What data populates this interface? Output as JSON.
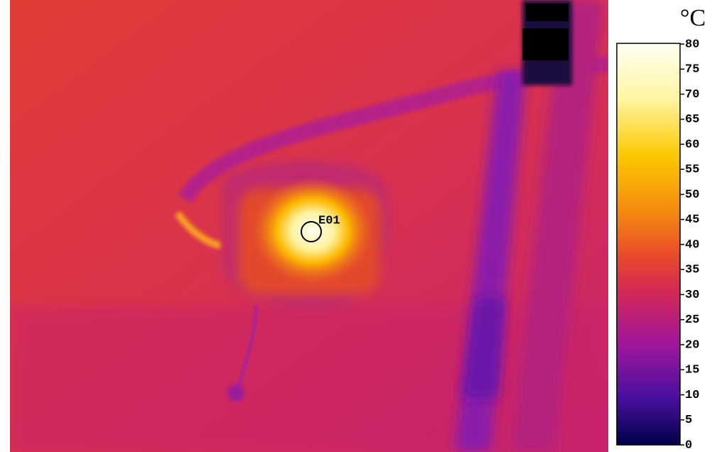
{
  "image": {
    "marker": "E01"
  },
  "colorbar": {
    "unit": "°C",
    "range": [
      0,
      80
    ],
    "ticks": [
      0,
      5,
      10,
      15,
      20,
      25,
      30,
      35,
      40,
      45,
      50,
      55,
      60,
      65,
      70,
      75,
      80
    ]
  }
}
